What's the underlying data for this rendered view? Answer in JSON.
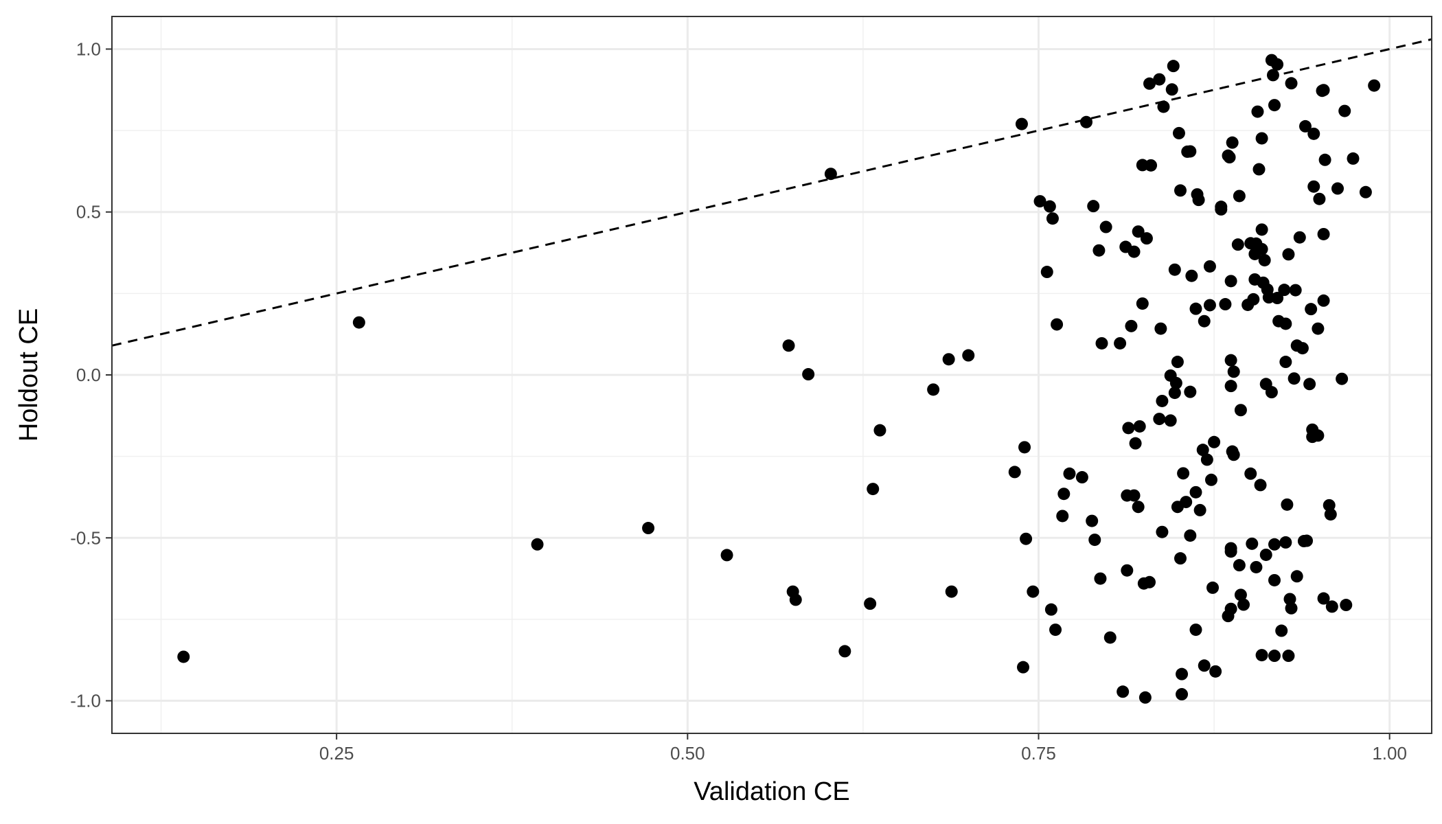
{
  "chart_data": {
    "type": "scatter",
    "title": "",
    "xlabel": "Validation CE",
    "ylabel": "Holdout CE",
    "xlim": [
      0.09,
      1.03
    ],
    "ylim": [
      -1.1,
      1.1
    ],
    "x_ticks": [
      0.25,
      0.5,
      0.75,
      1.0
    ],
    "x_tick_labels": [
      "0.25",
      "0.50",
      "0.75",
      "1.00"
    ],
    "y_ticks": [
      -1.0,
      -0.5,
      0.0,
      0.5,
      1.0
    ],
    "y_tick_labels": [
      "-1.0",
      "-0.5",
      "0.0",
      "0.5",
      "1.0"
    ],
    "grid": true,
    "reference_line": {
      "slope": 1,
      "intercept": 0,
      "style": "dashed"
    },
    "point_color": "#000000",
    "points": [
      {
        "x": 0.141,
        "y": -0.865
      },
      {
        "x": 0.266,
        "y": 0.161
      },
      {
        "x": 0.393,
        "y": -0.52
      },
      {
        "x": 0.472,
        "y": -0.47
      },
      {
        "x": 0.528,
        "y": -0.553
      },
      {
        "x": 0.572,
        "y": 0.09
      },
      {
        "x": 0.575,
        "y": -0.665
      },
      {
        "x": 0.577,
        "y": -0.69
      },
      {
        "x": 0.586,
        "y": 0.002
      },
      {
        "x": 0.602,
        "y": 0.617
      },
      {
        "x": 0.612,
        "y": -0.848
      },
      {
        "x": 0.63,
        "y": -0.702
      },
      {
        "x": 0.632,
        "y": -0.35
      },
      {
        "x": 0.637,
        "y": -0.17
      },
      {
        "x": 0.675,
        "y": -0.045
      },
      {
        "x": 0.686,
        "y": 0.048
      },
      {
        "x": 0.688,
        "y": -0.665
      },
      {
        "x": 0.7,
        "y": 0.06
      },
      {
        "x": 0.733,
        "y": -0.298
      },
      {
        "x": 0.738,
        "y": 0.77
      },
      {
        "x": 0.739,
        "y": -0.897
      },
      {
        "x": 0.74,
        "y": -0.222
      },
      {
        "x": 0.741,
        "y": -0.503
      },
      {
        "x": 0.746,
        "y": -0.665
      },
      {
        "x": 0.751,
        "y": 0.533
      },
      {
        "x": 0.756,
        "y": 0.316
      },
      {
        "x": 0.758,
        "y": 0.517
      },
      {
        "x": 0.759,
        "y": -0.72
      },
      {
        "x": 0.76,
        "y": 0.48
      },
      {
        "x": 0.763,
        "y": 0.155
      },
      {
        "x": 0.762,
        "y": -0.782
      },
      {
        "x": 0.767,
        "y": -0.433
      },
      {
        "x": 0.768,
        "y": -0.365
      },
      {
        "x": 0.772,
        "y": -0.303
      },
      {
        "x": 0.781,
        "y": -0.314
      },
      {
        "x": 0.784,
        "y": 0.776
      },
      {
        "x": 0.788,
        "y": -0.448
      },
      {
        "x": 0.789,
        "y": 0.518
      },
      {
        "x": 0.79,
        "y": -0.506
      },
      {
        "x": 0.793,
        "y": 0.382
      },
      {
        "x": 0.794,
        "y": -0.625
      },
      {
        "x": 0.795,
        "y": 0.097
      },
      {
        "x": 0.798,
        "y": 0.454
      },
      {
        "x": 0.801,
        "y": -0.806
      },
      {
        "x": 0.808,
        "y": 0.097
      },
      {
        "x": 0.81,
        "y": -0.972
      },
      {
        "x": 0.812,
        "y": 0.393
      },
      {
        "x": 0.813,
        "y": -0.37
      },
      {
        "x": 0.813,
        "y": -0.6
      },
      {
        "x": 0.814,
        "y": -0.163
      },
      {
        "x": 0.816,
        "y": 0.15
      },
      {
        "x": 0.818,
        "y": 0.378
      },
      {
        "x": 0.818,
        "y": -0.37
      },
      {
        "x": 0.819,
        "y": -0.21
      },
      {
        "x": 0.821,
        "y": -0.405
      },
      {
        "x": 0.821,
        "y": 0.44
      },
      {
        "x": 0.822,
        "y": -0.158
      },
      {
        "x": 0.824,
        "y": 0.644
      },
      {
        "x": 0.824,
        "y": 0.219
      },
      {
        "x": 0.825,
        "y": -0.64
      },
      {
        "x": 0.826,
        "y": -0.99
      },
      {
        "x": 0.827,
        "y": 0.419
      },
      {
        "x": 0.829,
        "y": -0.636
      },
      {
        "x": 0.83,
        "y": 0.643
      },
      {
        "x": 0.829,
        "y": 0.894
      },
      {
        "x": 0.836,
        "y": 0.907
      },
      {
        "x": 0.836,
        "y": -0.135
      },
      {
        "x": 0.837,
        "y": 0.142
      },
      {
        "x": 0.838,
        "y": -0.08
      },
      {
        "x": 0.838,
        "y": -0.482
      },
      {
        "x": 0.839,
        "y": 0.823
      },
      {
        "x": 0.844,
        "y": -0.002
      },
      {
        "x": 0.844,
        "y": -0.14
      },
      {
        "x": 0.845,
        "y": 0.876
      },
      {
        "x": 0.846,
        "y": 0.948
      },
      {
        "x": 0.847,
        "y": 0.323
      },
      {
        "x": 0.847,
        "y": -0.055
      },
      {
        "x": 0.848,
        "y": -0.025
      },
      {
        "x": 0.849,
        "y": 0.04
      },
      {
        "x": 0.849,
        "y": -0.405
      },
      {
        "x": 0.85,
        "y": 0.742
      },
      {
        "x": 0.851,
        "y": 0.566
      },
      {
        "x": 0.851,
        "y": -0.563
      },
      {
        "x": 0.852,
        "y": -0.918
      },
      {
        "x": 0.852,
        "y": -0.98
      },
      {
        "x": 0.853,
        "y": -0.302
      },
      {
        "x": 0.855,
        "y": -0.39
      },
      {
        "x": 0.856,
        "y": 0.685
      },
      {
        "x": 0.858,
        "y": 0.686
      },
      {
        "x": 0.858,
        "y": -0.052
      },
      {
        "x": 0.858,
        "y": -0.493
      },
      {
        "x": 0.859,
        "y": 0.304
      },
      {
        "x": 0.862,
        "y": 0.203
      },
      {
        "x": 0.862,
        "y": -0.36
      },
      {
        "x": 0.862,
        "y": -0.782
      },
      {
        "x": 0.863,
        "y": 0.554
      },
      {
        "x": 0.864,
        "y": 0.537
      },
      {
        "x": 0.865,
        "y": -0.415
      },
      {
        "x": 0.867,
        "y": -0.23
      },
      {
        "x": 0.868,
        "y": 0.165
      },
      {
        "x": 0.868,
        "y": -0.892
      },
      {
        "x": 0.87,
        "y": -0.26
      },
      {
        "x": 0.872,
        "y": 0.333
      },
      {
        "x": 0.872,
        "y": 0.214
      },
      {
        "x": 0.873,
        "y": -0.322
      },
      {
        "x": 0.874,
        "y": -0.653
      },
      {
        "x": 0.875,
        "y": -0.206
      },
      {
        "x": 0.876,
        "y": -0.91
      },
      {
        "x": 0.88,
        "y": 0.516
      },
      {
        "x": 0.88,
        "y": 0.508
      },
      {
        "x": 0.883,
        "y": 0.217
      },
      {
        "x": 0.885,
        "y": 0.673
      },
      {
        "x": 0.885,
        "y": -0.74
      },
      {
        "x": 0.886,
        "y": 0.668
      },
      {
        "x": 0.887,
        "y": 0.288
      },
      {
        "x": 0.887,
        "y": 0.045
      },
      {
        "x": 0.887,
        "y": -0.034
      },
      {
        "x": 0.887,
        "y": -0.532
      },
      {
        "x": 0.887,
        "y": -0.542
      },
      {
        "x": 0.887,
        "y": -0.718
      },
      {
        "x": 0.888,
        "y": 0.713
      },
      {
        "x": 0.888,
        "y": -0.235
      },
      {
        "x": 0.889,
        "y": 0.01
      },
      {
        "x": 0.889,
        "y": -0.245
      },
      {
        "x": 0.892,
        "y": 0.4
      },
      {
        "x": 0.893,
        "y": 0.549
      },
      {
        "x": 0.893,
        "y": -0.584
      },
      {
        "x": 0.894,
        "y": -0.108
      },
      {
        "x": 0.894,
        "y": -0.675
      },
      {
        "x": 0.896,
        "y": -0.705
      },
      {
        "x": 0.899,
        "y": 0.215
      },
      {
        "x": 0.901,
        "y": 0.404
      },
      {
        "x": 0.901,
        "y": -0.303
      },
      {
        "x": 0.902,
        "y": -0.518
      },
      {
        "x": 0.903,
        "y": 0.232
      },
      {
        "x": 0.904,
        "y": 0.371
      },
      {
        "x": 0.904,
        "y": 0.293
      },
      {
        "x": 0.905,
        "y": 0.403
      },
      {
        "x": 0.905,
        "y": -0.59
      },
      {
        "x": 0.906,
        "y": 0.808
      },
      {
        "x": 0.907,
        "y": 0.631
      },
      {
        "x": 0.908,
        "y": -0.338
      },
      {
        "x": 0.909,
        "y": 0.726
      },
      {
        "x": 0.909,
        "y": 0.446
      },
      {
        "x": 0.909,
        "y": 0.386
      },
      {
        "x": 0.909,
        "y": -0.86
      },
      {
        "x": 0.91,
        "y": 0.283
      },
      {
        "x": 0.911,
        "y": 0.352
      },
      {
        "x": 0.912,
        "y": -0.028
      },
      {
        "x": 0.912,
        "y": -0.552
      },
      {
        "x": 0.913,
        "y": 0.262
      },
      {
        "x": 0.914,
        "y": 0.238
      },
      {
        "x": 0.916,
        "y": -0.053
      },
      {
        "x": 0.916,
        "y": 0.966
      },
      {
        "x": 0.917,
        "y": 0.92
      },
      {
        "x": 0.918,
        "y": 0.828
      },
      {
        "x": 0.918,
        "y": -0.52
      },
      {
        "x": 0.918,
        "y": -0.63
      },
      {
        "x": 0.918,
        "y": -0.862
      },
      {
        "x": 0.92,
        "y": 0.953
      },
      {
        "x": 0.92,
        "y": 0.236
      },
      {
        "x": 0.921,
        "y": 0.165
      },
      {
        "x": 0.923,
        "y": -0.785
      },
      {
        "x": 0.925,
        "y": 0.261
      },
      {
        "x": 0.926,
        "y": 0.157
      },
      {
        "x": 0.926,
        "y": 0.04
      },
      {
        "x": 0.926,
        "y": -0.514
      },
      {
        "x": 0.927,
        "y": -0.398
      },
      {
        "x": 0.928,
        "y": -0.862
      },
      {
        "x": 0.928,
        "y": 0.37
      },
      {
        "x": 0.929,
        "y": -0.688
      },
      {
        "x": 0.93,
        "y": 0.895
      },
      {
        "x": 0.93,
        "y": -0.716
      },
      {
        "x": 0.932,
        "y": -0.011
      },
      {
        "x": 0.933,
        "y": 0.26
      },
      {
        "x": 0.934,
        "y": -0.618
      },
      {
        "x": 0.934,
        "y": 0.09
      },
      {
        "x": 0.936,
        "y": 0.422
      },
      {
        "x": 0.938,
        "y": 0.082
      },
      {
        "x": 0.939,
        "y": -0.51
      },
      {
        "x": 0.94,
        "y": 0.763
      },
      {
        "x": 0.941,
        "y": -0.509
      },
      {
        "x": 0.943,
        "y": -0.028
      },
      {
        "x": 0.944,
        "y": 0.202
      },
      {
        "x": 0.945,
        "y": -0.168
      },
      {
        "x": 0.945,
        "y": -0.19
      },
      {
        "x": 0.946,
        "y": 0.74
      },
      {
        "x": 0.946,
        "y": 0.578
      },
      {
        "x": 0.949,
        "y": 0.142
      },
      {
        "x": 0.949,
        "y": -0.186
      },
      {
        "x": 0.95,
        "y": 0.54
      },
      {
        "x": 0.952,
        "y": 0.872
      },
      {
        "x": 0.953,
        "y": 0.874
      },
      {
        "x": 0.953,
        "y": 0.228
      },
      {
        "x": 0.953,
        "y": 0.432
      },
      {
        "x": 0.953,
        "y": -0.686
      },
      {
        "x": 0.954,
        "y": 0.66
      },
      {
        "x": 0.957,
        "y": -0.4
      },
      {
        "x": 0.958,
        "y": -0.428
      },
      {
        "x": 0.959,
        "y": -0.711
      },
      {
        "x": 0.963,
        "y": 0.572
      },
      {
        "x": 0.966,
        "y": -0.012
      },
      {
        "x": 0.968,
        "y": 0.81
      },
      {
        "x": 0.969,
        "y": -0.706
      },
      {
        "x": 0.974,
        "y": 0.664
      },
      {
        "x": 0.983,
        "y": 0.561
      },
      {
        "x": 0.989,
        "y": 0.888
      }
    ]
  }
}
